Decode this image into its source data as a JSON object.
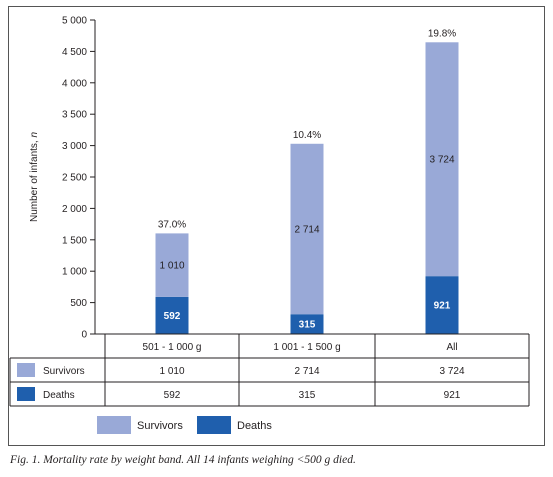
{
  "chart_data": {
    "type": "bar",
    "stacked": true,
    "categories": [
      "501 - 1 000 g",
      "1 001 - 1 500 g",
      "All"
    ],
    "series": [
      {
        "name": "Deaths",
        "values": [
          592,
          315,
          921
        ],
        "color": "#1f5fad"
      },
      {
        "name": "Survivors",
        "values": [
          1010,
          2714,
          3724
        ],
        "color": "#99a9d7"
      }
    ],
    "top_labels": [
      "37.0%",
      "10.4%",
      "19.8%"
    ],
    "ylabel": "Number of infants, n",
    "ylim": [
      0,
      5000
    ],
    "yticks": [
      0,
      500,
      1000,
      1500,
      2000,
      2500,
      3000,
      3500,
      4000,
      4500,
      5000
    ],
    "ytick_labels": [
      "0",
      "500",
      "1 000",
      "1 500",
      "2 000",
      "2 500",
      "3 000",
      "3 500",
      "4 000",
      "4 500",
      "5 000"
    ],
    "value_labels": {
      "Survivors": [
        "1 010",
        "2 714",
        "3 724"
      ],
      "Deaths": [
        "592",
        "315",
        "921"
      ]
    },
    "legend_placement": "bottom",
    "grid": false
  },
  "table": {
    "rows": [
      {
        "name": "Survivors",
        "values": [
          "1 010",
          "2 714",
          "3 724"
        ]
      },
      {
        "name": "Deaths",
        "values": [
          "592",
          "315",
          "921"
        ]
      }
    ]
  },
  "legend": [
    "Survivors",
    "Deaths"
  ],
  "caption": "Fig. 1. Mortality rate by weight band. All 14 infants weighing <500 g died."
}
